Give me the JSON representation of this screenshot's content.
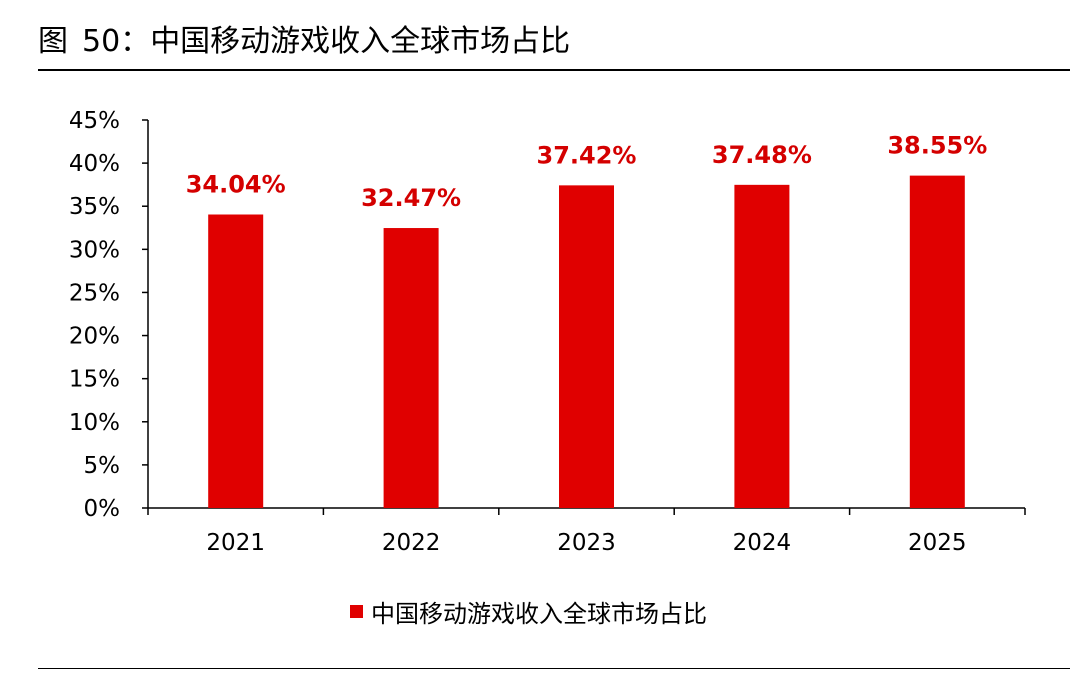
{
  "figure": {
    "label": "图",
    "number": "50：",
    "title": "中国移动游戏收入全球市场占比"
  },
  "colors": {
    "bar": "#E00000",
    "data_label": "#D40000",
    "axis": "#000000"
  },
  "chart_data": {
    "type": "bar",
    "title": "",
    "xlabel": "",
    "ylabel": "",
    "categories": [
      "2021",
      "2022",
      "2023",
      "2024",
      "2025"
    ],
    "series": [
      {
        "name": "中国移动游戏收入全球市场占比",
        "values": [
          34.04,
          32.47,
          37.42,
          37.48,
          38.55
        ],
        "data_labels": [
          "34.04%",
          "32.47%",
          "37.42%",
          "37.48%",
          "38.55%"
        ]
      }
    ],
    "ylim": [
      0,
      45
    ],
    "yticks": [
      0,
      5,
      10,
      15,
      20,
      25,
      30,
      35,
      40,
      45
    ],
    "ytick_labels": [
      "0%",
      "5%",
      "10%",
      "15%",
      "20%",
      "25%",
      "30%",
      "35%",
      "40%",
      "45%"
    ],
    "grid": false,
    "legend_position": "bottom-center"
  }
}
